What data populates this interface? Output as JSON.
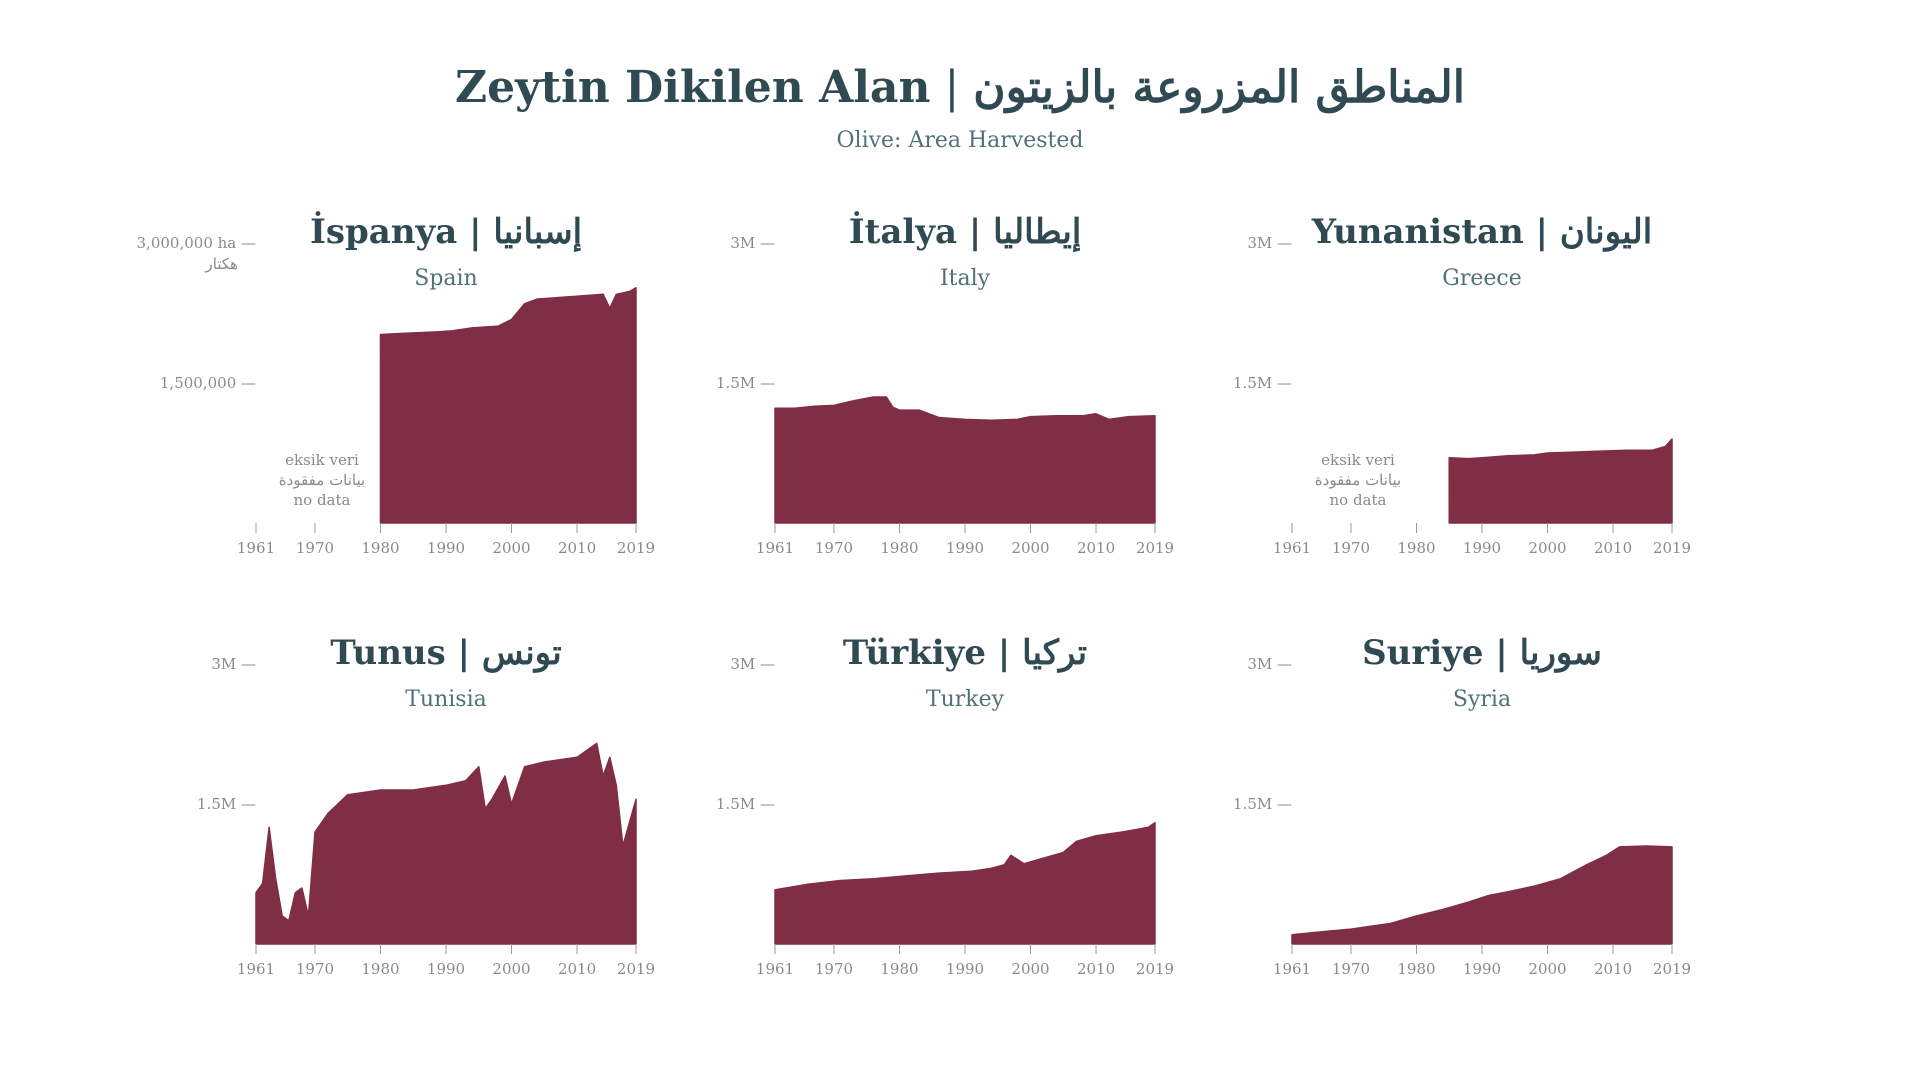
{
  "title_latin": "Zeytin Dikilen Alan",
  "title_separator": "|",
  "title_arabic": "المناطق المزروعة بالزيتون",
  "subtitle": "Olive: Area Harvested",
  "colors": {
    "area_fill": "#7f2e45",
    "title": "#2f4a52",
    "subtitle": "#4f7177",
    "axis": "#8a8a8a"
  },
  "no_data_labels": [
    "eksik veri",
    "بيانات مفقودة",
    "no data"
  ],
  "chart_data": [
    {
      "type": "area",
      "title": "İspanya | إسبانيا",
      "subtitle": "Spain",
      "x_ticks": [
        1961,
        1970,
        1980,
        1990,
        2000,
        2010,
        2019
      ],
      "xlim": [
        1961,
        2019
      ],
      "ylim": [
        0,
        3000000
      ],
      "y_ticks": [
        {
          "value": 3000000,
          "label": "3,000,000 ha —"
        },
        {
          "value": 1500000,
          "label": "1,500,000 —"
        }
      ],
      "y_unit_label": "هكتار",
      "no_data_range": [
        1961,
        1979
      ],
      "x": [
        1980,
        1983,
        1986,
        1989,
        1991,
        1994,
        1996,
        1998,
        2000,
        2002,
        2004,
        2006,
        2008,
        2010,
        2012,
        2014,
        2015,
        2016,
        2018,
        2019
      ],
      "values": [
        2020000,
        2030000,
        2040000,
        2050000,
        2060000,
        2090000,
        2100000,
        2110000,
        2180000,
        2350000,
        2400000,
        2410000,
        2420000,
        2430000,
        2440000,
        2450000,
        2300000,
        2450000,
        2480000,
        2520000
      ]
    },
    {
      "type": "area",
      "title": "İtalya | إيطاليا",
      "subtitle": "Italy",
      "x_ticks": [
        1961,
        1970,
        1980,
        1990,
        2000,
        2010,
        2019
      ],
      "xlim": [
        1961,
        2019
      ],
      "ylim": [
        0,
        3000000
      ],
      "y_ticks": [
        {
          "value": 3000000,
          "label": "3M —"
        },
        {
          "value": 1500000,
          "label": "1.5M —"
        }
      ],
      "x": [
        1961,
        1964,
        1967,
        1970,
        1973,
        1976,
        1978,
        1979,
        1980,
        1983,
        1986,
        1990,
        1994,
        1998,
        2000,
        2004,
        2008,
        2010,
        2012,
        2015,
        2019
      ],
      "values": [
        1230000,
        1230000,
        1250000,
        1260000,
        1310000,
        1350000,
        1350000,
        1240000,
        1210000,
        1210000,
        1130000,
        1110000,
        1100000,
        1110000,
        1140000,
        1150000,
        1150000,
        1170000,
        1110000,
        1140000,
        1150000
      ]
    },
    {
      "type": "area",
      "title": "Yunanistan | اليونان",
      "subtitle": "Greece",
      "x_ticks": [
        1961,
        1970,
        1980,
        1990,
        2000,
        2010,
        2019
      ],
      "xlim": [
        1961,
        2019
      ],
      "ylim": [
        0,
        3000000
      ],
      "y_ticks": [
        {
          "value": 3000000,
          "label": "3M —"
        },
        {
          "value": 1500000,
          "label": "1.5M —"
        }
      ],
      "no_data_range": [
        1961,
        1984
      ],
      "x": [
        1985,
        1988,
        1990,
        1994,
        1998,
        2000,
        2004,
        2008,
        2012,
        2016,
        2018,
        2019
      ],
      "values": [
        700000,
        690000,
        700000,
        720000,
        730000,
        750000,
        760000,
        770000,
        780000,
        780000,
        820000,
        900000
      ]
    },
    {
      "type": "area",
      "title": "Tunus | تونس",
      "subtitle": "Tunisia",
      "x_ticks": [
        1961,
        1970,
        1980,
        1990,
        2000,
        2010,
        2019
      ],
      "xlim": [
        1961,
        2019
      ],
      "ylim": [
        0,
        3000000
      ],
      "y_ticks": [
        {
          "value": 3000000,
          "label": "3M —"
        },
        {
          "value": 1500000,
          "label": "1.5M —"
        }
      ],
      "x": [
        1961,
        1962,
        1963,
        1964,
        1965,
        1966,
        1967,
        1968,
        1969,
        1970,
        1972,
        1975,
        1980,
        1985,
        1990,
        1993,
        1995,
        1996,
        1997,
        1999,
        2000,
        2002,
        2005,
        2010,
        2013,
        2014,
        2015,
        2016,
        2017,
        2018,
        2019
      ],
      "values": [
        550000,
        650000,
        1250000,
        700000,
        300000,
        250000,
        550000,
        600000,
        300000,
        1200000,
        1400000,
        1600000,
        1650000,
        1650000,
        1700000,
        1750000,
        1900000,
        1450000,
        1550000,
        1800000,
        1500000,
        1900000,
        1950000,
        2000000,
        2150000,
        1800000,
        2000000,
        1700000,
        1050000,
        1300000,
        1550000
      ]
    },
    {
      "type": "area",
      "title": "Türkiye | تركيا",
      "subtitle": "Turkey",
      "x_ticks": [
        1961,
        1970,
        1980,
        1990,
        2000,
        2010,
        2019
      ],
      "xlim": [
        1961,
        2019
      ],
      "ylim": [
        0,
        3000000
      ],
      "y_ticks": [
        {
          "value": 3000000,
          "label": "3M —"
        },
        {
          "value": 1500000,
          "label": "1.5M —"
        }
      ],
      "x": [
        1961,
        1966,
        1971,
        1976,
        1981,
        1986,
        1991,
        1994,
        1996,
        1997,
        1999,
        2002,
        2005,
        2007,
        2010,
        2014,
        2018,
        2019
      ],
      "values": [
        580000,
        640000,
        680000,
        700000,
        730000,
        760000,
        780000,
        810000,
        850000,
        950000,
        860000,
        920000,
        980000,
        1100000,
        1160000,
        1200000,
        1250000,
        1300000
      ]
    },
    {
      "type": "area",
      "title": "Suriye | سوريا",
      "subtitle": "Syria",
      "x_ticks": [
        1961,
        1970,
        1980,
        1990,
        2000,
        2010,
        2019
      ],
      "xlim": [
        1961,
        2019
      ],
      "ylim": [
        0,
        3000000
      ],
      "y_ticks": [
        {
          "value": 3000000,
          "label": "3M —"
        },
        {
          "value": 1500000,
          "label": "1.5M —"
        }
      ],
      "x": [
        1961,
        1964,
        1967,
        1970,
        1973,
        1976,
        1980,
        1984,
        1988,
        1991,
        1994,
        1998,
        2002,
        2006,
        2009,
        2011,
        2015,
        2019
      ],
      "values": [
        100000,
        120000,
        140000,
        160000,
        190000,
        220000,
        300000,
        370000,
        450000,
        520000,
        560000,
        620000,
        700000,
        850000,
        950000,
        1040000,
        1050000,
        1040000
      ]
    }
  ]
}
